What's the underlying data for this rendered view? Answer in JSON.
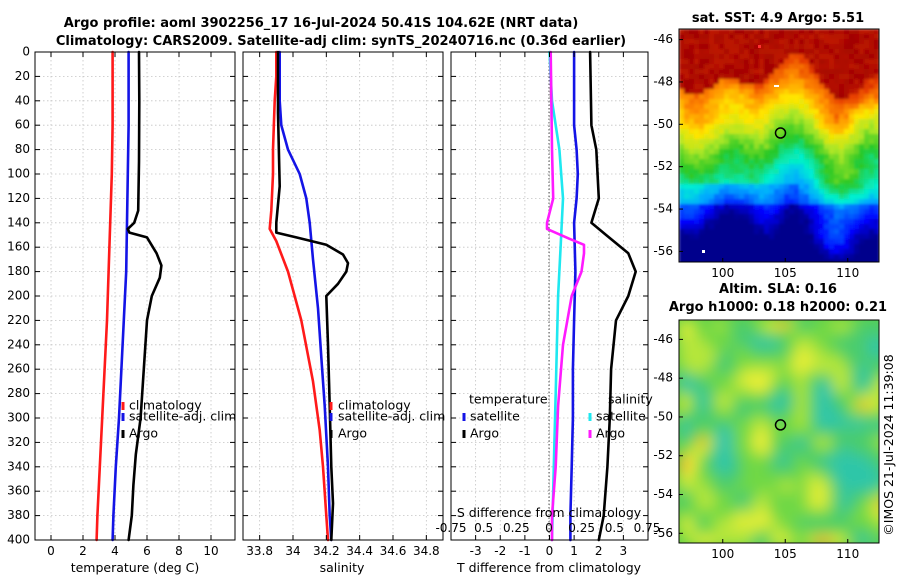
{
  "header": {
    "title_line1": "Argo profile: aoml 3902256_17 16-Jul-2024 50.41S 104.62E (NRT data)",
    "title_line2": "Climatology: CARS2009. Satellite-adj clim: synTS_20240716.nc (0.36d earlier)"
  },
  "watermark": "©IMOS 21-Jul-2024 11:39:08",
  "colors": {
    "climatology": "#ff1a1a",
    "satellite_adj": "#1414e6",
    "argo": "#000000",
    "s_satellite": "#1ee8f0",
    "s_argo": "#ff1aff"
  },
  "chart_data": [
    {
      "type": "line",
      "id": "temperature",
      "xlabel": "temperature (deg C)",
      "ylabel": "",
      "xlim": [
        -1,
        11.5
      ],
      "ylim": [
        400,
        0
      ],
      "xticks": [
        0,
        2,
        4,
        6,
        8,
        10
      ],
      "yticks": [
        0,
        20,
        40,
        60,
        80,
        100,
        120,
        140,
        160,
        180,
        200,
        220,
        240,
        260,
        280,
        300,
        320,
        340,
        360,
        380,
        400
      ],
      "grid": true,
      "legend": [
        "climatology",
        "satellite-adj. clim",
        "Argo"
      ],
      "series": [
        {
          "name": "climatology",
          "color": "climatology",
          "points": [
            [
              3.85,
              0
            ],
            [
              3.85,
              60
            ],
            [
              3.8,
              100
            ],
            [
              3.7,
              140
            ],
            [
              3.6,
              180
            ],
            [
              3.5,
              220
            ],
            [
              3.35,
              260
            ],
            [
              3.2,
              300
            ],
            [
              3.05,
              340
            ],
            [
              2.9,
              380
            ],
            [
              2.85,
              400
            ]
          ]
        },
        {
          "name": "satellite-adj. clim",
          "color": "satellite_adj",
          "points": [
            [
              4.85,
              0
            ],
            [
              4.85,
              60
            ],
            [
              4.8,
              100
            ],
            [
              4.75,
              140
            ],
            [
              4.7,
              180
            ],
            [
              4.55,
              220
            ],
            [
              4.4,
              260
            ],
            [
              4.25,
              300
            ],
            [
              4.05,
              340
            ],
            [
              3.9,
              380
            ],
            [
              3.85,
              400
            ]
          ]
        },
        {
          "name": "Argo",
          "color": "argo",
          "points": [
            [
              5.5,
              0
            ],
            [
              5.52,
              40
            ],
            [
              5.5,
              90
            ],
            [
              5.45,
              130
            ],
            [
              5.2,
              140
            ],
            [
              4.8,
              145
            ],
            [
              4.9,
              148
            ],
            [
              6.0,
              152
            ],
            [
              6.6,
              165
            ],
            [
              6.9,
              175
            ],
            [
              6.8,
              185
            ],
            [
              6.3,
              200
            ],
            [
              6.0,
              220
            ],
            [
              5.8,
              260
            ],
            [
              5.6,
              300
            ],
            [
              5.3,
              330
            ],
            [
              5.15,
              355
            ],
            [
              5.05,
              380
            ],
            [
              4.85,
              400
            ]
          ]
        }
      ]
    },
    {
      "type": "line",
      "id": "salinity",
      "xlabel": "salinity",
      "ylabel": "",
      "xlim": [
        33.7,
        34.9
      ],
      "ylim": [
        400,
        0
      ],
      "xticks": [
        33.8,
        34.0,
        34.2,
        34.4,
        34.6,
        34.8
      ],
      "xticklabels": [
        "33.8",
        "34",
        "34.2",
        "34.4",
        "34.6",
        "34.8"
      ],
      "yticks": [
        0,
        20,
        40,
        60,
        80,
        100,
        120,
        140,
        160,
        180,
        200,
        220,
        240,
        260,
        280,
        300,
        320,
        340,
        360,
        380,
        400
      ],
      "grid": true,
      "legend": [
        "climatology",
        "satellite-adj. clim",
        "Argo"
      ],
      "series": [
        {
          "name": "climatology",
          "color": "climatology",
          "points": [
            [
              33.9,
              0
            ],
            [
              33.9,
              20
            ],
            [
              33.89,
              40
            ],
            [
              33.88,
              80
            ],
            [
              33.88,
              100
            ],
            [
              33.87,
              130
            ],
            [
              33.86,
              145
            ],
            [
              33.9,
              155
            ],
            [
              33.97,
              180
            ],
            [
              34.05,
              220
            ],
            [
              34.12,
              270
            ],
            [
              34.16,
              310
            ],
            [
              34.18,
              340
            ],
            [
              34.2,
              380
            ],
            [
              34.21,
              400
            ]
          ]
        },
        {
          "name": "satellite-adj. clim",
          "color": "satellite_adj",
          "points": [
            [
              33.92,
              0
            ],
            [
              33.92,
              40
            ],
            [
              33.93,
              60
            ],
            [
              33.97,
              80
            ],
            [
              34.04,
              100
            ],
            [
              34.08,
              120
            ],
            [
              34.1,
              140
            ],
            [
              34.12,
              170
            ],
            [
              34.15,
              210
            ],
            [
              34.17,
              250
            ],
            [
              34.19,
              290
            ],
            [
              34.21,
              340
            ],
            [
              34.22,
              380
            ],
            [
              34.23,
              400
            ]
          ]
        },
        {
          "name": "Argo",
          "color": "argo",
          "points": [
            [
              33.91,
              0
            ],
            [
              33.91,
              50
            ],
            [
              33.92,
              110
            ],
            [
              33.9,
              140
            ],
            [
              33.9,
              148
            ],
            [
              34.02,
              152
            ],
            [
              34.2,
              158
            ],
            [
              34.3,
              166
            ],
            [
              34.33,
              173
            ],
            [
              34.32,
              180
            ],
            [
              34.27,
              190
            ],
            [
              34.2,
              200
            ],
            [
              34.21,
              240
            ],
            [
              34.22,
              290
            ],
            [
              34.23,
              340
            ],
            [
              34.24,
              370
            ],
            [
              34.23,
              400
            ]
          ]
        }
      ]
    },
    {
      "type": "line",
      "id": "difference",
      "xlabel": "T difference from climatology",
      "xlabel_top": "S difference from climatology",
      "top_ticklabels": [
        "-0.75",
        "0.5",
        "0.25",
        "0",
        "0.25",
        "0.5",
        "0.75"
      ],
      "top_tick_values": [
        -0.75,
        -0.5,
        -0.25,
        0,
        0.25,
        0.5,
        0.75
      ],
      "ylabel": "",
      "xlim": [
        -4,
        4
      ],
      "ylim": [
        400,
        0
      ],
      "xticks": [
        -3,
        -2,
        -1,
        0,
        1,
        2,
        3
      ],
      "yticks": [
        0,
        20,
        40,
        60,
        80,
        100,
        120,
        140,
        160,
        180,
        200,
        220,
        240,
        260,
        280,
        300,
        320,
        340,
        360,
        380,
        400
      ],
      "grid": true,
      "legend_titles": [
        "temperature",
        "salinity"
      ],
      "legend": [
        "satellite",
        "Argo",
        "satellite",
        "Argo"
      ],
      "series": [
        {
          "name": "T satellite",
          "color": "satellite_adj",
          "points": [
            [
              1.0,
              0
            ],
            [
              1.0,
              60
            ],
            [
              1.1,
              80
            ],
            [
              1.15,
              100
            ],
            [
              1.1,
              120
            ],
            [
              1.0,
              140
            ],
            [
              1.05,
              180
            ],
            [
              1.0,
              220
            ],
            [
              0.95,
              260
            ],
            [
              0.95,
              300
            ],
            [
              0.9,
              340
            ],
            [
              0.85,
              380
            ],
            [
              0.85,
              400
            ]
          ]
        },
        {
          "name": "T Argo",
          "color": "argo",
          "points": [
            [
              1.65,
              0
            ],
            [
              1.7,
              60
            ],
            [
              1.9,
              80
            ],
            [
              2.0,
              120
            ],
            [
              1.7,
              140
            ],
            [
              2.3,
              150
            ],
            [
              3.2,
              165
            ],
            [
              3.5,
              180
            ],
            [
              3.2,
              200
            ],
            [
              2.7,
              220
            ],
            [
              2.5,
              260
            ],
            [
              2.45,
              300
            ],
            [
              2.35,
              340
            ],
            [
              2.2,
              380
            ],
            [
              2.0,
              400
            ]
          ]
        },
        {
          "name": "S satellite",
          "color": "s_satellite",
          "points": [
            [
              0.0,
              0
            ],
            [
              0.1,
              40
            ],
            [
              0.4,
              80
            ],
            [
              0.55,
              120
            ],
            [
              0.5,
              140
            ],
            [
              0.45,
              160
            ],
            [
              0.35,
              200
            ],
            [
              0.3,
              240
            ],
            [
              0.25,
              280
            ],
            [
              0.2,
              320
            ],
            [
              0.15,
              360
            ],
            [
              0.1,
              400
            ]
          ]
        },
        {
          "name": "S Argo",
          "color": "s_argo",
          "points": [
            [
              0.05,
              0
            ],
            [
              0.1,
              80
            ],
            [
              0.15,
              120
            ],
            [
              -0.1,
              140
            ],
            [
              -0.1,
              145
            ],
            [
              0.8,
              153
            ],
            [
              1.4,
              158
            ],
            [
              1.4,
              165
            ],
            [
              1.3,
              180
            ],
            [
              0.9,
              200
            ],
            [
              0.55,
              240
            ],
            [
              0.35,
              290
            ],
            [
              0.25,
              340
            ],
            [
              0.1,
              380
            ],
            [
              0.1,
              400
            ]
          ]
        }
      ]
    },
    {
      "type": "heatmap",
      "id": "sst-map",
      "title": "sat. SST: 4.9 Argo: 5.51",
      "xlim": [
        96.5,
        112.5
      ],
      "ylim": [
        -56.5,
        -45.5
      ],
      "xticks": [
        100,
        105,
        110
      ],
      "yticks": [
        -46,
        -48,
        -50,
        -52,
        -54,
        -56
      ],
      "marker": {
        "lon": 104.62,
        "lat": -50.41
      }
    },
    {
      "type": "heatmap",
      "id": "sla-map",
      "title": "Altim. SLA: 0.16",
      "subtitle": "Argo h1000: 0.18 h2000: 0.21",
      "xlim": [
        96.5,
        112.5
      ],
      "ylim": [
        -56.5,
        -45
      ],
      "xticks": [
        100,
        105,
        110
      ],
      "yticks": [
        -46,
        -48,
        -50,
        -52,
        -54,
        -56
      ],
      "marker": {
        "lon": 104.62,
        "lat": -50.41
      }
    }
  ]
}
